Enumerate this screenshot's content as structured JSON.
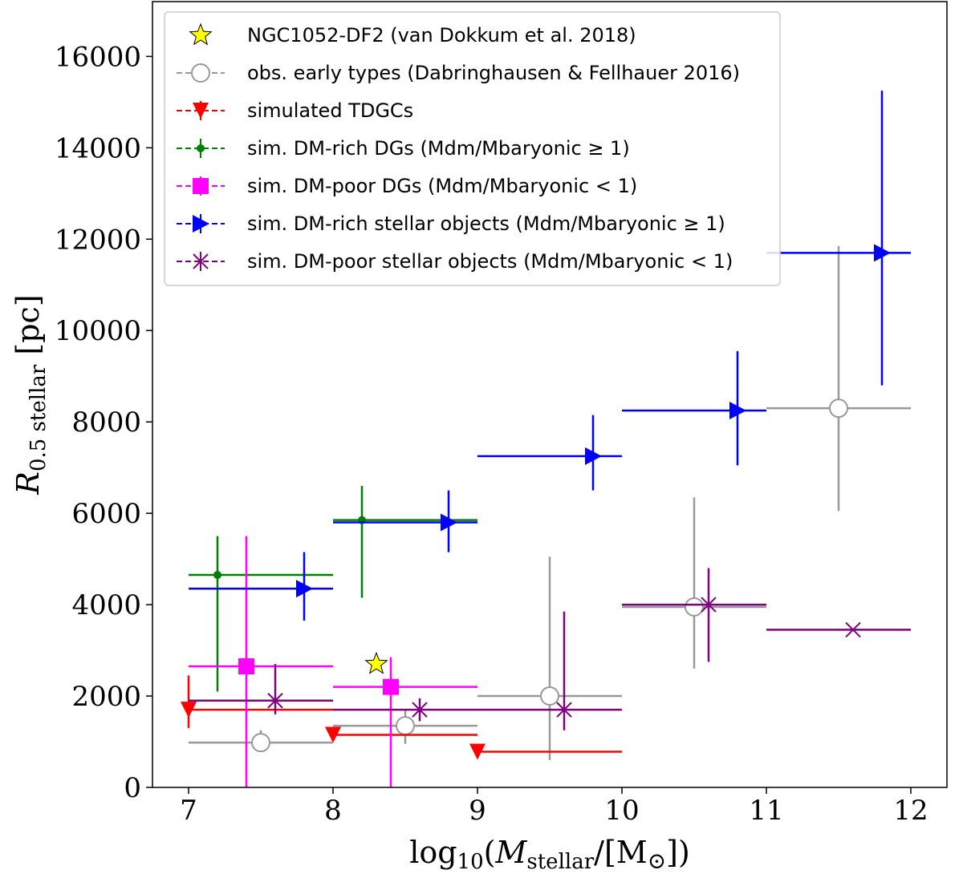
{
  "chart_data": {
    "type": "scatter",
    "xlabel": "log10(Mstellar/[M⊙])",
    "ylabel": "R0.5 stellar [pc]",
    "xlim": [
      6.75,
      12.25
    ],
    "ylim": [
      0,
      17200
    ],
    "xticks": [
      7,
      8,
      9,
      10,
      11,
      12
    ],
    "yticks": [
      0,
      2000,
      4000,
      6000,
      8000,
      10000,
      12000,
      14000,
      16000
    ],
    "grid": false,
    "legend_position": "top-left",
    "series": [
      {
        "name": "NGC1052-DF2 (van Dokkum et al. 2018)",
        "marker": "star",
        "color": "#ffff00",
        "edge": "#000000",
        "points": [
          {
            "x": 8.3,
            "y": 2700
          }
        ]
      },
      {
        "name": "obs. early types (Dabringhausen & Fellhauer 2016)",
        "marker": "circle-open",
        "color": "#999999",
        "points": [
          {
            "x": 7.5,
            "y": 980,
            "xlo": 7.0,
            "xhi": 8.0,
            "ylo": 900,
            "yhi": 1250
          },
          {
            "x": 8.5,
            "y": 1350,
            "xlo": 8.0,
            "xhi": 9.0,
            "ylo": 950,
            "yhi": 1700
          },
          {
            "x": 9.5,
            "y": 2000,
            "xlo": 9.0,
            "xhi": 10.0,
            "ylo": 600,
            "yhi": 5050
          },
          {
            "x": 10.5,
            "y": 3950,
            "xlo": 10.0,
            "xhi": 11.0,
            "ylo": 2600,
            "yhi": 6350
          },
          {
            "x": 11.5,
            "y": 8300,
            "xlo": 11.0,
            "xhi": 12.0,
            "ylo": 6050,
            "yhi": 11850
          }
        ]
      },
      {
        "name": "simulated TDGCs",
        "marker": "triangle-down",
        "color": "#ff0000",
        "points": [
          {
            "x": 7.0,
            "y": 1700,
            "xlo": 7.0,
            "xhi": 8.0,
            "ylo": 1300,
            "yhi": 2450
          },
          {
            "x": 8.0,
            "y": 1150,
            "xlo": 8.0,
            "xhi": 9.0,
            "ylo": 1150,
            "yhi": 1150
          },
          {
            "x": 9.0,
            "y": 780,
            "xlo": 9.0,
            "xhi": 10.0,
            "ylo": 780,
            "yhi": 780
          }
        ]
      },
      {
        "name": "sim. DM-rich DGs (Mdm/Mbaryonic ≥ 1)",
        "marker": "dot",
        "color": "#008000",
        "points": [
          {
            "x": 7.2,
            "y": 4650,
            "xlo": 7.0,
            "xhi": 8.0,
            "ylo": 2100,
            "yhi": 5500
          },
          {
            "x": 8.2,
            "y": 5850,
            "xlo": 8.0,
            "xhi": 9.0,
            "ylo": 4150,
            "yhi": 6600
          }
        ]
      },
      {
        "name": "sim. DM-poor DGs (Mdm/Mbaryonic < 1)",
        "marker": "square",
        "color": "#ff00ff",
        "points": [
          {
            "x": 7.4,
            "y": 2650,
            "xlo": 7.0,
            "xhi": 8.0,
            "ylo": 0,
            "yhi": 5500
          },
          {
            "x": 8.4,
            "y": 2200,
            "xlo": 8.0,
            "xhi": 9.0,
            "ylo": 0,
            "yhi": 2850
          }
        ]
      },
      {
        "name": "sim. DM-rich stellar objects (Mdm/Mbaryonic ≥ 1)",
        "marker": "triangle-right",
        "color": "#0000ff",
        "points": [
          {
            "x": 7.8,
            "y": 4350,
            "xlo": 7.0,
            "xhi": 8.0,
            "ylo": 3650,
            "yhi": 5150
          },
          {
            "x": 8.8,
            "y": 5800,
            "xlo": 8.0,
            "xhi": 9.0,
            "ylo": 5150,
            "yhi": 6500
          },
          {
            "x": 9.8,
            "y": 7250,
            "xlo": 9.0,
            "xhi": 10.0,
            "ylo": 6500,
            "yhi": 8150
          },
          {
            "x": 10.8,
            "y": 8250,
            "xlo": 10.0,
            "xhi": 11.0,
            "ylo": 7050,
            "yhi": 9550
          },
          {
            "x": 11.8,
            "y": 11700,
            "xlo": 11.0,
            "xhi": 12.0,
            "ylo": 8800,
            "yhi": 15250
          }
        ]
      },
      {
        "name": "sim. DM-poor stellar objects (Mdm/Mbaryonic < 1)",
        "marker": "x",
        "color": "#800080",
        "points": [
          {
            "x": 7.6,
            "y": 1900,
            "xlo": 7.0,
            "xhi": 8.0,
            "ylo": 1600,
            "yhi": 2700
          },
          {
            "x": 8.6,
            "y": 1700,
            "xlo": 8.0,
            "xhi": 9.0,
            "ylo": 1450,
            "yhi": 1950
          },
          {
            "x": 9.6,
            "y": 1700,
            "xlo": 9.0,
            "xhi": 10.0,
            "ylo": 1250,
            "yhi": 3850
          },
          {
            "x": 10.6,
            "y": 4000,
            "xlo": 10.0,
            "xhi": 11.0,
            "ylo": 2750,
            "yhi": 4800
          },
          {
            "x": 11.6,
            "y": 3450,
            "xlo": 11.0,
            "xhi": 12.0,
            "ylo": 3450,
            "yhi": 3450
          }
        ]
      }
    ]
  }
}
